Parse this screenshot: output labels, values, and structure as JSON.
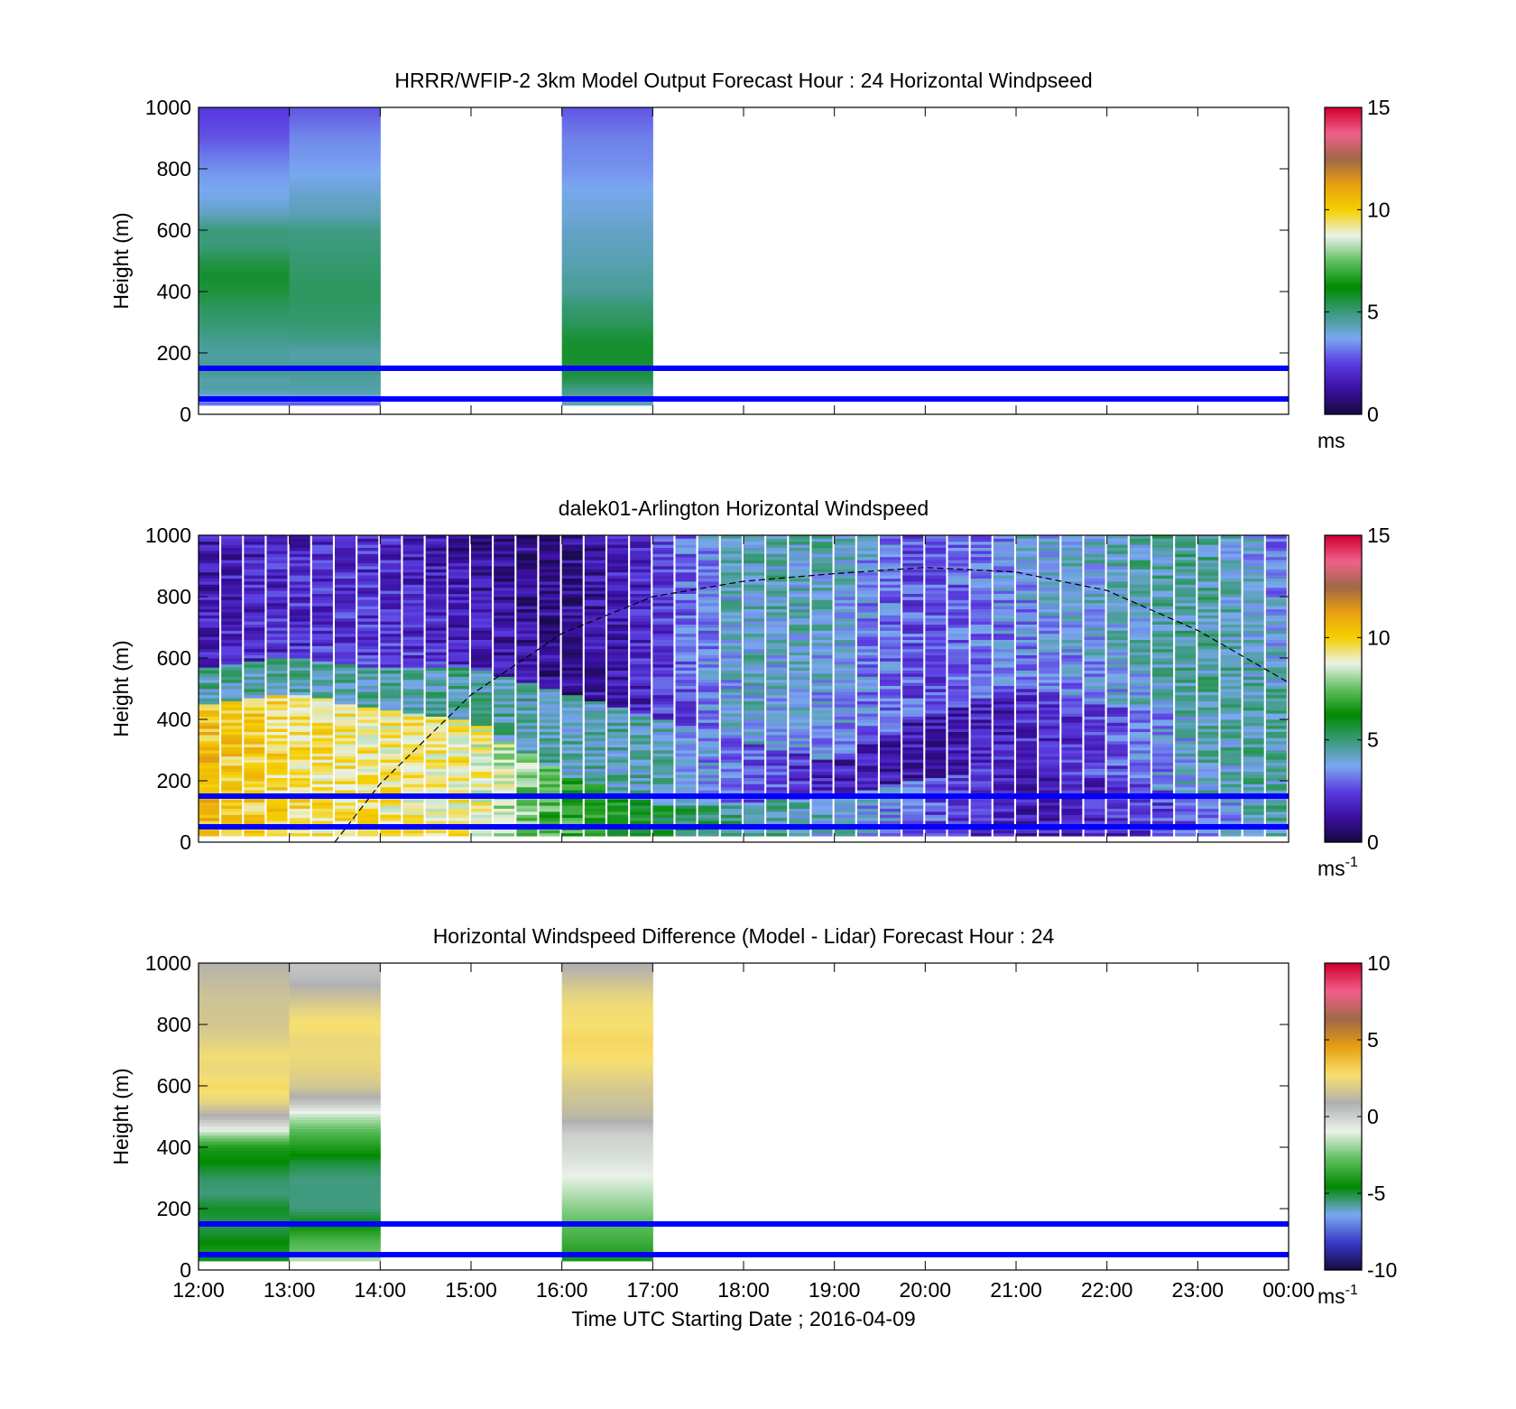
{
  "figure": {
    "x_axis_label": "Time UTC  Starting Date ; 2016-04-09",
    "x_ticks": [
      "12:00",
      "13:00",
      "14:00",
      "15:00",
      "16:00",
      "17:00",
      "18:00",
      "19:00",
      "20:00",
      "21:00",
      "22:00",
      "23:00",
      "00:00"
    ]
  },
  "colors": {
    "reference_lines": "#0000ff",
    "speed_scale": [
      "#140a40",
      "#3a0fa0",
      "#5a3ce0",
      "#7aa8f0",
      "#3a9a7a",
      "#008a00",
      "#5fbf5f",
      "#eaf2ea",
      "#f5d000",
      "#e8a010",
      "#a06848",
      "#f0608a",
      "#d00030"
    ],
    "diff_scale": [
      "#140a40",
      "#3a3ac8",
      "#7aa8f0",
      "#008a00",
      "#5fbf5f",
      "#eaf2ea",
      "#b0b0b0",
      "#f7e070",
      "#e8a010",
      "#a06848",
      "#f0608a",
      "#d00030"
    ]
  },
  "chart_data": [
    {
      "type": "heatmap",
      "title": "HRRR/WFIP-2 3km Model Output   Forecast Hour : 24 Horizontal Windpseed",
      "ylabel": "Height (m)",
      "xlim": [
        "12:00",
        "00:00"
      ],
      "ylim": [
        0,
        1000
      ],
      "y_ticks": [
        "0",
        "200",
        "400",
        "600",
        "800",
        "1000"
      ],
      "colorbar": {
        "min": 0,
        "max": 15,
        "ticks": [
          "0",
          "5",
          "10",
          "15"
        ],
        "unit": "ms",
        "unit_sup": ""
      },
      "reference_lines_m": [
        50,
        150
      ],
      "columns": [
        {
          "start": "12:00",
          "end": "13:00",
          "bottom": 30,
          "levels": [
            [
              30,
              3.0
            ],
            [
              50,
              3.5
            ],
            [
              70,
              4.3
            ],
            [
              90,
              4.6
            ],
            [
              110,
              4.4
            ],
            [
              130,
              4.7
            ],
            [
              160,
              4.8
            ],
            [
              180,
              4.6
            ],
            [
              200,
              4.6
            ],
            [
              250,
              4.8
            ],
            [
              300,
              5.1
            ],
            [
              350,
              5.3
            ],
            [
              400,
              5.6
            ],
            [
              450,
              5.8
            ],
            [
              500,
              5.5
            ],
            [
              550,
              5.0
            ],
            [
              600,
              5.0
            ],
            [
              650,
              4.3
            ],
            [
              700,
              3.9
            ],
            [
              800,
              3.5
            ],
            [
              900,
              2.8
            ],
            [
              1000,
              2.4
            ]
          ]
        },
        {
          "start": "13:00",
          "end": "14:00",
          "bottom": 30,
          "levels": [
            [
              30,
              2.7
            ],
            [
              50,
              3.5
            ],
            [
              70,
              4.4
            ],
            [
              90,
              4.5
            ],
            [
              110,
              4.6
            ],
            [
              130,
              4.7
            ],
            [
              160,
              4.8
            ],
            [
              180,
              4.5
            ],
            [
              200,
              4.5
            ],
            [
              250,
              4.9
            ],
            [
              300,
              5.1
            ],
            [
              350,
              5.2
            ],
            [
              400,
              5.3
            ],
            [
              450,
              5.2
            ],
            [
              500,
              5.1
            ],
            [
              550,
              5.0
            ],
            [
              600,
              4.9
            ],
            [
              650,
              4.4
            ],
            [
              700,
              4.2
            ],
            [
              800,
              3.7
            ],
            [
              900,
              3.4
            ],
            [
              1000,
              2.8
            ]
          ]
        },
        {
          "start": "16:00",
          "end": "17:00",
          "bottom": 30,
          "levels": [
            [
              30,
              4.3
            ],
            [
              50,
              4.4
            ],
            [
              70,
              4.7
            ],
            [
              90,
              5.0
            ],
            [
              110,
              5.4
            ],
            [
              130,
              5.6
            ],
            [
              160,
              5.7
            ],
            [
              200,
              5.8
            ],
            [
              250,
              5.7
            ],
            [
              300,
              5.3
            ],
            [
              350,
              5.1
            ],
            [
              400,
              4.7
            ],
            [
              450,
              4.6
            ],
            [
              500,
              4.4
            ],
            [
              550,
              4.3
            ],
            [
              600,
              4.2
            ],
            [
              650,
              4.0
            ],
            [
              700,
              3.9
            ],
            [
              800,
              3.5
            ],
            [
              900,
              3.3
            ],
            [
              1000,
              2.8
            ]
          ]
        }
      ]
    },
    {
      "type": "heatmap",
      "title": "dalek01-Arlington  Horizontal Windspeed",
      "ylabel": "Height (m)",
      "xlim": [
        "12:00",
        "00:00"
      ],
      "ylim": [
        0,
        1000
      ],
      "y_ticks": [
        "0",
        "200",
        "400",
        "600",
        "800",
        "1000"
      ],
      "colorbar": {
        "min": 0,
        "max": 15,
        "ticks": [
          "0",
          "5",
          "10",
          "15"
        ],
        "unit": "ms",
        "unit_sup": "-1"
      },
      "reference_lines_m": [
        50,
        150
      ],
      "profiles": [
        {
          "time": "12:00",
          "low_speed": 10.5,
          "low_top_m": 440,
          "mid_speed": 4.5,
          "mid_top_m": 560,
          "upper_speed": 1.8,
          "top_speed": 1.5
        },
        {
          "time": "13:00",
          "low_speed": 9.6,
          "low_top_m": 480,
          "mid_speed": 4.5,
          "mid_top_m": 600,
          "upper_speed": 2.2,
          "top_speed": 1.9
        },
        {
          "time": "14:00",
          "low_speed": 9.3,
          "low_top_m": 430,
          "mid_speed": 4.5,
          "mid_top_m": 560,
          "upper_speed": 2.5,
          "top_speed": 2.0
        },
        {
          "time": "15:00",
          "low_speed": 9.2,
          "low_top_m": 390,
          "mid_speed": 4.6,
          "mid_top_m": 570,
          "upper_speed": 2.0,
          "top_speed": 1.0
        },
        {
          "time": "16:00",
          "low_speed": 7.0,
          "low_top_m": 220,
          "mid_speed": 4.4,
          "mid_top_m": 480,
          "upper_speed": 1.0,
          "top_speed": 0.8
        },
        {
          "time": "17:00",
          "low_speed": 6.0,
          "low_top_m": 120,
          "mid_speed": 4.4,
          "mid_top_m": 400,
          "upper_speed": 2.0,
          "top_speed": 2.3
        },
        {
          "time": "18:00",
          "low_speed": 4.7,
          "low_top_m": 120,
          "mid_speed": 3.0,
          "mid_top_m": 320,
          "upper_speed": 4.0,
          "top_speed": 4.5
        },
        {
          "time": "19:00",
          "low_speed": 4.2,
          "low_top_m": 150,
          "mid_speed": 1.7,
          "mid_top_m": 260,
          "upper_speed": 3.5,
          "top_speed": 4.4
        },
        {
          "time": "20:00",
          "low_speed": 2.8,
          "low_top_m": 200,
          "mid_speed": 1.5,
          "mid_top_m": 400,
          "upper_speed": 2.6,
          "top_speed": 2.5
        },
        {
          "time": "21:00",
          "low_speed": 1.6,
          "low_top_m": 250,
          "mid_speed": 1.9,
          "mid_top_m": 500,
          "upper_speed": 3.2,
          "top_speed": 3.8
        },
        {
          "time": "22:00",
          "low_speed": 1.9,
          "low_top_m": 200,
          "mid_speed": 2.5,
          "mid_top_m": 450,
          "upper_speed": 3.6,
          "top_speed": 4.3
        },
        {
          "time": "23:00",
          "low_speed": 3.0,
          "low_top_m": 150,
          "mid_speed": 4.2,
          "mid_top_m": 400,
          "upper_speed": 4.6,
          "top_speed": 4.8
        },
        {
          "time": "00:00",
          "low_speed": 4.8,
          "low_top_m": 200,
          "mid_speed": 4.6,
          "mid_top_m": 500,
          "upper_speed": 4.3,
          "top_speed": 2.8
        }
      ],
      "overlay_curve": {
        "style": "dashed",
        "points": [
          [
            "13:30",
            0
          ],
          [
            "14:00",
            190
          ],
          [
            "15:00",
            480
          ],
          [
            "16:00",
            680
          ],
          [
            "17:00",
            800
          ],
          [
            "18:00",
            850
          ],
          [
            "19:00",
            875
          ],
          [
            "20:00",
            895
          ],
          [
            "21:00",
            880
          ],
          [
            "22:00",
            820
          ],
          [
            "23:00",
            690
          ],
          [
            "00:00",
            520
          ]
        ]
      }
    },
    {
      "type": "heatmap",
      "title": "Horizontal Windspeed Difference (Model - Lidar) Forecast Hour : 24",
      "ylabel": "Height (m)",
      "xlim": [
        "12:00",
        "00:00"
      ],
      "ylim": [
        0,
        1000
      ],
      "y_ticks": [
        "0",
        "200",
        "400",
        "600",
        "800",
        "1000"
      ],
      "colorbar": {
        "min": -10,
        "max": 10,
        "ticks": [
          "-10",
          "-5",
          "0",
          "5",
          "10"
        ],
        "unit": "ms",
        "unit_sup": "-1"
      },
      "reference_lines_m": [
        50,
        150
      ],
      "columns": [
        {
          "start": "12:00",
          "end": "13:00",
          "bottom": 30,
          "levels": [
            [
              30,
              -5.0
            ],
            [
              60,
              -4.0
            ],
            [
              100,
              -4.7
            ],
            [
              150,
              -5.2
            ],
            [
              200,
              -4.8
            ],
            [
              250,
              -5.5
            ],
            [
              300,
              -5.3
            ],
            [
              350,
              -4.6
            ],
            [
              400,
              -4.0
            ],
            [
              430,
              -2.5
            ],
            [
              460,
              -0.8
            ],
            [
              500,
              0.8
            ],
            [
              550,
              2.3
            ],
            [
              600,
              3.0
            ],
            [
              650,
              2.4
            ],
            [
              700,
              2.6
            ],
            [
              750,
              2.1
            ],
            [
              800,
              1.8
            ],
            [
              900,
              1.6
            ],
            [
              950,
              1.3
            ],
            [
              1000,
              1.0
            ]
          ]
        },
        {
          "start": "13:00",
          "end": "14:00",
          "bottom": 30,
          "levels": [
            [
              30,
              -1.5
            ],
            [
              60,
              -2.6
            ],
            [
              100,
              -3.2
            ],
            [
              150,
              -4.5
            ],
            [
              200,
              -5.5
            ],
            [
              300,
              -5.5
            ],
            [
              350,
              -5.0
            ],
            [
              400,
              -4.0
            ],
            [
              450,
              -3.0
            ],
            [
              500,
              -1.5
            ],
            [
              550,
              0.5
            ],
            [
              600,
              1.8
            ],
            [
              650,
              2.2
            ],
            [
              700,
              2.5
            ],
            [
              750,
              2.4
            ],
            [
              800,
              2.8
            ],
            [
              850,
              2.2
            ],
            [
              900,
              1.4
            ],
            [
              950,
              0.6
            ],
            [
              1000,
              0.3
            ]
          ]
        },
        {
          "start": "16:00",
          "end": "17:00",
          "bottom": 30,
          "levels": [
            [
              30,
              -4.2
            ],
            [
              60,
              -3.8
            ],
            [
              100,
              -3.3
            ],
            [
              150,
              -2.8
            ],
            [
              200,
              -2.2
            ],
            [
              250,
              -1.6
            ],
            [
              300,
              -1.0
            ],
            [
              350,
              -0.5
            ],
            [
              400,
              -0.2
            ],
            [
              440,
              0.0
            ],
            [
              470,
              0.6
            ],
            [
              500,
              1.2
            ],
            [
              550,
              1.6
            ],
            [
              600,
              1.9
            ],
            [
              650,
              2.4
            ],
            [
              700,
              2.8
            ],
            [
              750,
              3.0
            ],
            [
              800,
              2.7
            ],
            [
              850,
              2.6
            ],
            [
              900,
              2.2
            ],
            [
              950,
              1.5
            ],
            [
              1000,
              0.8
            ]
          ]
        }
      ]
    }
  ]
}
